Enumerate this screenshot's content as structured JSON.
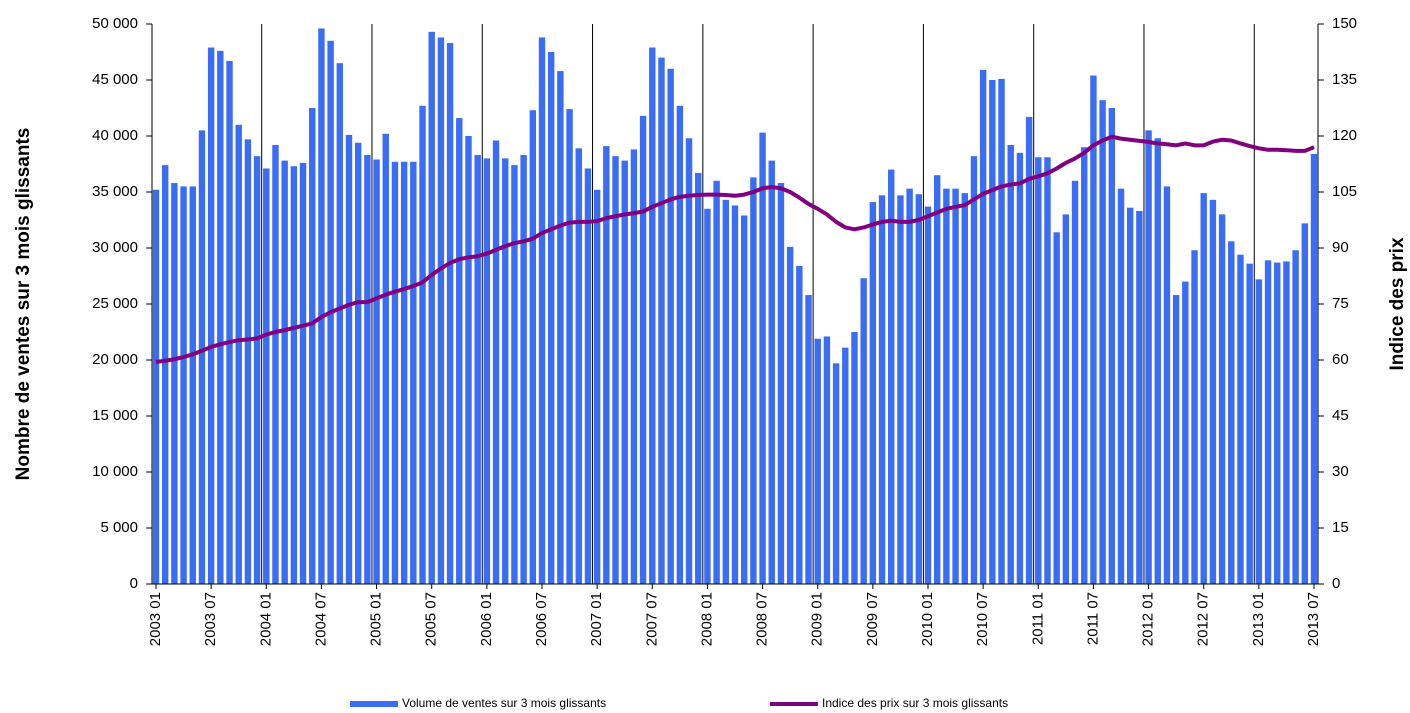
{
  "chart_data": {
    "type": "bar-line",
    "y_label": "Nombre de ventes sur 3 mois glissants",
    "y2_label": "Indice des prix",
    "categories": [
      "2003 01",
      null,
      null,
      null,
      null,
      null,
      "2003 07",
      null,
      null,
      null,
      null,
      null,
      "2004 01",
      null,
      null,
      null,
      null,
      null,
      "2004 07",
      null,
      null,
      null,
      null,
      null,
      "2005 01",
      null,
      null,
      null,
      null,
      null,
      "2005 07",
      null,
      null,
      null,
      null,
      null,
      "2006 01",
      null,
      null,
      null,
      null,
      null,
      "2006 07",
      null,
      null,
      null,
      null,
      null,
      "2007 01",
      null,
      null,
      null,
      null,
      null,
      "2007 07",
      null,
      null,
      null,
      null,
      null,
      "2008 01",
      null,
      null,
      null,
      null,
      null,
      "2008 07",
      null,
      null,
      null,
      null,
      null,
      "2009 01",
      null,
      null,
      null,
      null,
      null,
      "2009 07",
      null,
      null,
      null,
      null,
      null,
      "2010 01",
      null,
      null,
      null,
      null,
      null,
      "2010 07",
      null,
      null,
      null,
      null,
      null,
      "2011 01",
      null,
      null,
      null,
      null,
      null,
      "2011 07",
      null,
      null,
      null,
      null,
      null,
      "2012 01",
      null,
      null,
      null,
      null,
      null,
      "2012 07",
      null,
      null,
      null,
      null,
      null,
      "2013 01",
      null,
      null,
      null,
      null,
      null,
      "2013 07"
    ],
    "series": [
      {
        "name": "Volume de ventes sur 3 mois glissants",
        "type": "bar",
        "color": "#3a6cf4",
        "values": [
          35200,
          37400,
          35800,
          35500,
          35500,
          40500,
          47900,
          47600,
          46700,
          41000,
          39700,
          38200,
          37100,
          39200,
          37800,
          37300,
          37600,
          42500,
          49600,
          48500,
          46500,
          40100,
          39400,
          38300,
          37900,
          40200,
          37700,
          37700,
          37700,
          42700,
          49300,
          48800,
          48300,
          41600,
          40000,
          38300,
          38000,
          39600,
          38000,
          37400,
          38300,
          42300,
          48800,
          47500,
          45800,
          42400,
          38900,
          37100,
          35200,
          39100,
          38200,
          37800,
          38800,
          41800,
          47900,
          47000,
          46000,
          42700,
          39800,
          36700,
          33500,
          36000,
          34300,
          33800,
          32900,
          36300,
          40300,
          37800,
          35800,
          30100,
          28400,
          25800,
          21900,
          22100,
          19700,
          21100,
          22500,
          27300,
          34100,
          34700,
          37000,
          34700,
          35300,
          34800,
          33700,
          36500,
          35300,
          35300,
          34900,
          38200,
          45900,
          45000,
          45100,
          39200,
          38500,
          41700,
          38100,
          38100,
          31400,
          33000,
          36000,
          39000,
          45400,
          43200,
          42500,
          35300,
          33600,
          33300,
          40500,
          39800,
          35500,
          25800,
          27000,
          29800,
          34900,
          34300,
          33000,
          30600,
          29400,
          28600,
          27200,
          28900,
          28700,
          28800,
          29800,
          32200,
          38400
        ]
      },
      {
        "name": "Indice des prix sur 3 mois glissants",
        "type": "line",
        "axis": "y2",
        "color": "#800080",
        "values": [
          59.5,
          59.8,
          60.2,
          60.8,
          61.5,
          62.5,
          63.5,
          64.2,
          64.8,
          65.3,
          65.5,
          65.8,
          66.8,
          67.5,
          68,
          68.6,
          69.2,
          69.8,
          71.5,
          72.8,
          73.8,
          74.8,
          75.5,
          75.5,
          76.5,
          77.5,
          78.3,
          79,
          79.8,
          80.8,
          82.8,
          84.5,
          86,
          87,
          87.5,
          87.8,
          88.5,
          89.5,
          90.5,
          91.3,
          91.8,
          92.5,
          94,
          95,
          96,
          96.8,
          97,
          97,
          97.2,
          98,
          98.5,
          99,
          99.3,
          99.8,
          101,
          102,
          103,
          103.7,
          104,
          104.2,
          104.3,
          104.3,
          104.2,
          104,
          104.3,
          105,
          106,
          106.3,
          106,
          105,
          103.5,
          101.8,
          100.5,
          99,
          97,
          95.5,
          95,
          95.5,
          96.3,
          97,
          97.3,
          97,
          97,
          97.5,
          98.5,
          99.5,
          100.5,
          101,
          101.5,
          103,
          104.5,
          105.5,
          106.5,
          107,
          107.3,
          108.5,
          109.2,
          110,
          111.3,
          112.8,
          114,
          115.5,
          117.5,
          118.8,
          119.8,
          119.3,
          119,
          118.7,
          118.4,
          118,
          117.8,
          117.5,
          118,
          117.5,
          117.5,
          118.5,
          119,
          118.8,
          118,
          117.3,
          116.7,
          116.3,
          116.3,
          116.2,
          116,
          116,
          117
        ]
      }
    ],
    "ylim": [
      0,
      50000
    ],
    "yticks": [
      0,
      {
        "value": 5000,
        "label": "5 000"
      },
      {
        "value": 10000,
        "label": "10 000"
      },
      {
        "value": 15000,
        "label": "15 000"
      },
      {
        "value": 20000,
        "label": "20 000"
      },
      {
        "value": 25000,
        "label": "25 000"
      },
      {
        "value": 30000,
        "label": "30 000"
      },
      {
        "value": 35000,
        "label": "35 000"
      },
      {
        "value": 40000,
        "label": "40 000"
      },
      {
        "value": 45000,
        "label": "45 000"
      },
      {
        "value": 50000,
        "label": "50 000"
      }
    ],
    "y2lim": [
      0,
      150
    ],
    "y2ticks": [
      0,
      15,
      30,
      45,
      60,
      75,
      90,
      105,
      120,
      135,
      150
    ],
    "legend": "bottom"
  }
}
